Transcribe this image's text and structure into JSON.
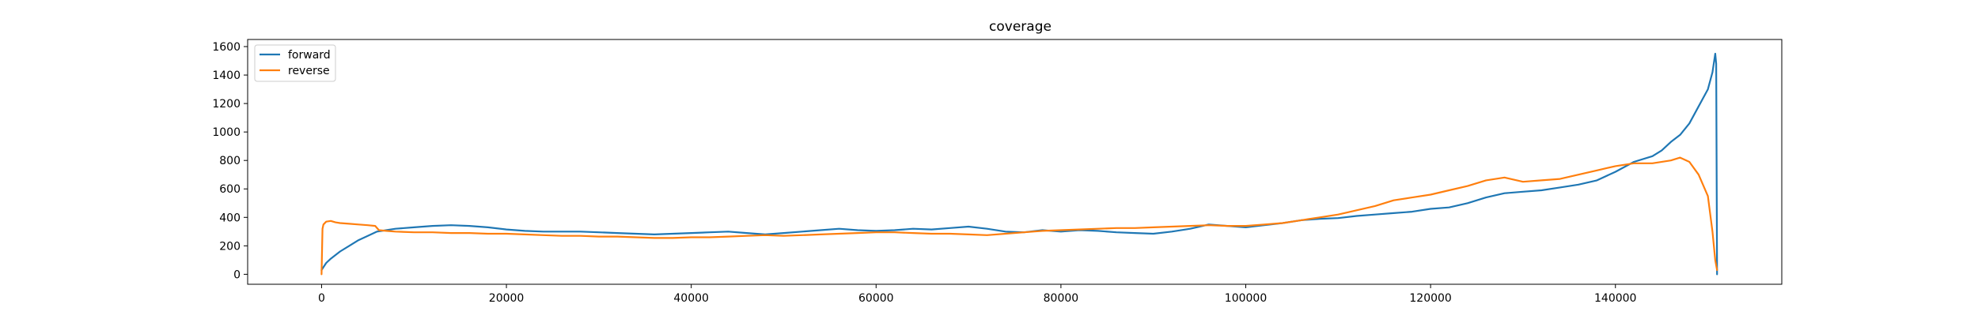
{
  "chart_data": {
    "type": "line",
    "title": "coverage",
    "xlabel": "",
    "ylabel": "",
    "xlim": [
      -8000,
      158000
    ],
    "ylim": [
      -70,
      1650
    ],
    "x_ticks": [
      0,
      20000,
      40000,
      60000,
      80000,
      100000,
      120000,
      140000
    ],
    "y_ticks": [
      0,
      200,
      400,
      600,
      800,
      1000,
      1200,
      1400,
      1600
    ],
    "grid": false,
    "legend": {
      "position": "top-left",
      "entries": [
        "forward",
        "reverse"
      ]
    },
    "series": [
      {
        "name": "forward",
        "color": "#1f77b4",
        "x": [
          0,
          300,
          500,
          1000,
          2000,
          3000,
          4000,
          5000,
          6000,
          7000,
          8000,
          10000,
          12000,
          14000,
          16000,
          18000,
          20000,
          22000,
          24000,
          26000,
          28000,
          30000,
          32000,
          34000,
          36000,
          38000,
          40000,
          42000,
          44000,
          46000,
          48000,
          50000,
          52000,
          54000,
          56000,
          58000,
          60000,
          62000,
          64000,
          66000,
          68000,
          70000,
          72000,
          74000,
          76000,
          78000,
          80000,
          82000,
          84000,
          86000,
          88000,
          90000,
          92000,
          94000,
          96000,
          98000,
          100000,
          102000,
          104000,
          106000,
          108000,
          110000,
          112000,
          114000,
          116000,
          118000,
          120000,
          122000,
          124000,
          126000,
          128000,
          130000,
          132000,
          134000,
          136000,
          138000,
          140000,
          142000,
          144000,
          145000,
          146000,
          147000,
          148000,
          149000,
          150000,
          150500,
          150800,
          150900,
          151000
        ],
        "y": [
          30,
          60,
          80,
          110,
          160,
          200,
          240,
          270,
          300,
          310,
          320,
          330,
          340,
          345,
          340,
          330,
          315,
          305,
          300,
          300,
          300,
          295,
          290,
          285,
          280,
          285,
          290,
          295,
          300,
          290,
          280,
          290,
          300,
          310,
          320,
          310,
          305,
          310,
          320,
          315,
          325,
          335,
          320,
          300,
          295,
          310,
          300,
          310,
          305,
          295,
          290,
          285,
          300,
          320,
          350,
          340,
          330,
          345,
          360,
          380,
          390,
          395,
          410,
          420,
          430,
          440,
          460,
          470,
          500,
          540,
          570,
          580,
          590,
          610,
          630,
          660,
          720,
          790,
          830,
          870,
          930,
          980,
          1060,
          1180,
          1300,
          1420,
          1550,
          1480,
          0
        ]
      },
      {
        "name": "reverse",
        "color": "#ff7f0e",
        "x": [
          0,
          100,
          200,
          500,
          1000,
          1500,
          2000,
          3000,
          4000,
          5000,
          5800,
          6200,
          7000,
          8000,
          10000,
          12000,
          14000,
          16000,
          18000,
          20000,
          22000,
          24000,
          26000,
          28000,
          30000,
          32000,
          34000,
          36000,
          38000,
          40000,
          42000,
          44000,
          46000,
          48000,
          50000,
          52000,
          54000,
          56000,
          58000,
          60000,
          62000,
          64000,
          66000,
          68000,
          70000,
          72000,
          74000,
          76000,
          78000,
          80000,
          82000,
          84000,
          86000,
          88000,
          90000,
          92000,
          94000,
          96000,
          98000,
          100000,
          102000,
          104000,
          106000,
          108000,
          110000,
          112000,
          114000,
          116000,
          118000,
          120000,
          122000,
          124000,
          126000,
          128000,
          130000,
          132000,
          134000,
          136000,
          138000,
          140000,
          142000,
          144000,
          146000,
          147000,
          148000,
          149000,
          150000,
          150500,
          150800,
          151000
        ],
        "y": [
          0,
          320,
          350,
          370,
          375,
          365,
          360,
          355,
          350,
          345,
          340,
          310,
          305,
          300,
          295,
          295,
          290,
          290,
          285,
          285,
          280,
          275,
          270,
          270,
          265,
          265,
          260,
          255,
          255,
          260,
          260,
          265,
          270,
          275,
          270,
          275,
          280,
          285,
          290,
          295,
          295,
          290,
          285,
          285,
          280,
          275,
          285,
          295,
          305,
          310,
          315,
          320,
          325,
          325,
          330,
          335,
          340,
          345,
          340,
          340,
          350,
          360,
          380,
          400,
          420,
          450,
          480,
          520,
          540,
          560,
          590,
          620,
          660,
          680,
          650,
          660,
          670,
          700,
          730,
          760,
          780,
          780,
          800,
          820,
          790,
          700,
          550,
          300,
          100,
          30
        ]
      }
    ]
  }
}
